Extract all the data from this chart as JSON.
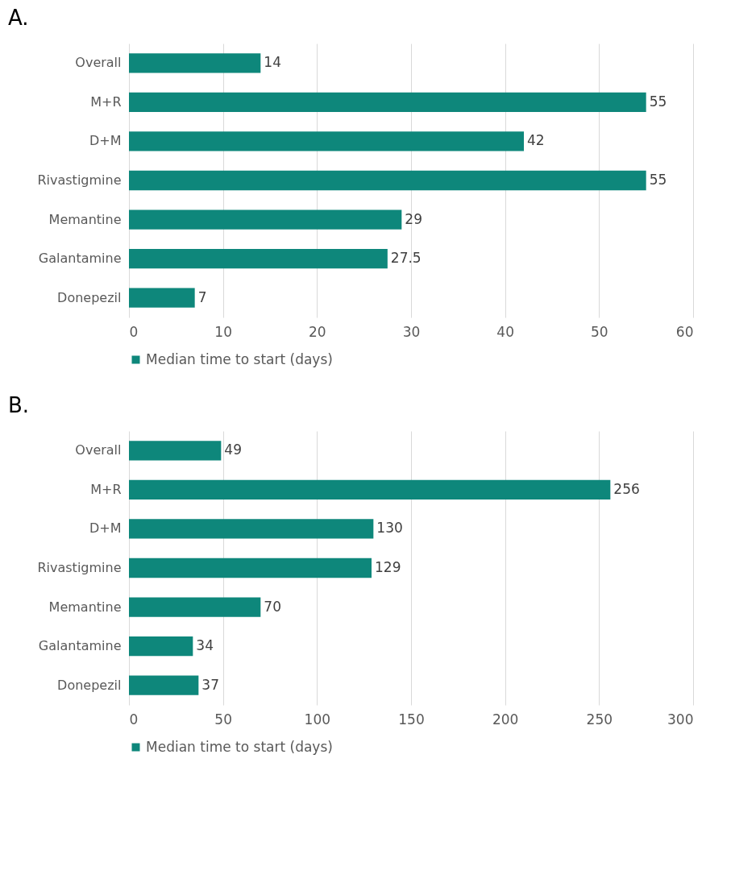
{
  "chart_data": [
    {
      "type": "bar",
      "orientation": "horizontal",
      "title": "A.",
      "categories": [
        "Overall",
        "M+R",
        "D+M",
        "Rivastigmine",
        "Memantine",
        "Galantamine",
        "Donepezil"
      ],
      "series": [
        {
          "name": "Median time to start (days)",
          "color": "#0e877b",
          "values": [
            14,
            55,
            42,
            55,
            29,
            27.5,
            7
          ]
        }
      ],
      "xlim": [
        0,
        60
      ],
      "xticks": [
        0,
        10,
        20,
        30,
        40,
        50,
        60
      ],
      "grid": "x",
      "legend": "bottom",
      "data_labels": true
    },
    {
      "type": "bar",
      "orientation": "horizontal",
      "title": "B.",
      "categories": [
        "Overall",
        "M+R",
        "D+M",
        "Rivastigmine",
        "Memantine",
        "Galantamine",
        "Donepezil"
      ],
      "series": [
        {
          "name": "Median time to start (days)",
          "color": "#0e877b",
          "values": [
            49,
            256,
            130,
            129,
            70,
            34,
            37
          ]
        }
      ],
      "xlim": [
        0,
        300
      ],
      "xticks": [
        0,
        50,
        100,
        150,
        200,
        250,
        300
      ],
      "grid": "x",
      "legend": "bottom",
      "data_labels": true
    }
  ]
}
